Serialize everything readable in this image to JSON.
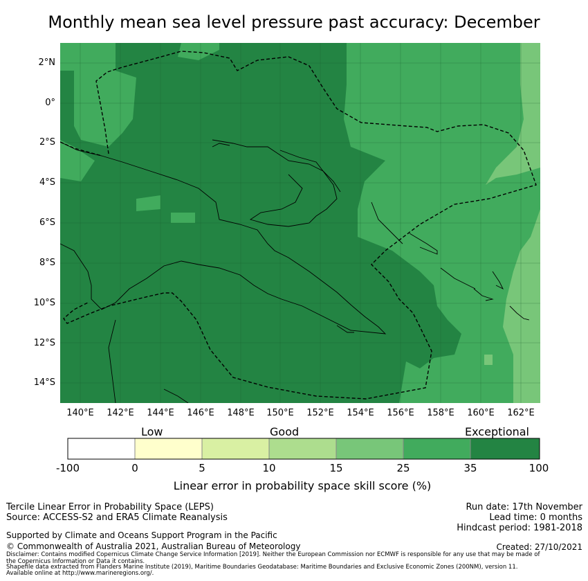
{
  "title": "Monthly mean sea level pressure past accuracy: December",
  "map": {
    "lat_labels": [
      "2°N",
      "0°",
      "2°S",
      "4°S",
      "6°S",
      "8°S",
      "10°S",
      "12°S",
      "14°S"
    ],
    "lon_labels": [
      "140°E",
      "142°E",
      "144°E",
      "146°E",
      "148°E",
      "150°E",
      "152°E",
      "154°E",
      "156°E",
      "158°E",
      "160°E",
      "162°E"
    ],
    "lat_range": [
      -15,
      3
    ],
    "lon_range": [
      139,
      163
    ]
  },
  "legend": {
    "categories": [
      "Low",
      "Good",
      "Exceptional"
    ],
    "ticks": [
      "-100",
      "0",
      "5",
      "10",
      "15",
      "25",
      "35",
      "100"
    ],
    "colors": [
      "#ffffff",
      "#ffffcc",
      "#d9f0a3",
      "#addd8e",
      "#78c679",
      "#41ab5d",
      "#238443"
    ],
    "title": "Linear error in probability space skill score (%)"
  },
  "colors": {
    "exceptional": "#238443",
    "high": "#41ab5d",
    "mid": "#78c679"
  },
  "footer": {
    "method": "Tercile Linear Error in Probability Space (LEPS)",
    "source": "Source: ACCESS-S2 and ERA5 Climate Reanalysis",
    "run_date": "Run date: 17th November",
    "lead_time": "Lead time: 0 months",
    "hindcast": "Hindcast period: 1981-2018",
    "support": "Supported by Climate and Oceans Support Program in the Pacific",
    "copyright": "© Commonwealth of Australia 2021, Australian Bureau of Meteorology",
    "created": "Created: 27/10/2021",
    "disclaimer1": "Disclaimer: Contains modified Copernicus Climate Change Service Information [2019]. Neither the European Commission nor ECMWF is responsible for any use that may be made of",
    "disclaimer2": "the Copernicus Information or Data it contains.",
    "shapefile1": "Shapefile data extracted from Flanders Marine Institute (2019), Maritime Boundaries Geodatabase: Maritime Boundaries and Exclusive Economic Zones (200NM), version 11.",
    "shapefile2": "Available online at http://www.marineregions.org/."
  }
}
